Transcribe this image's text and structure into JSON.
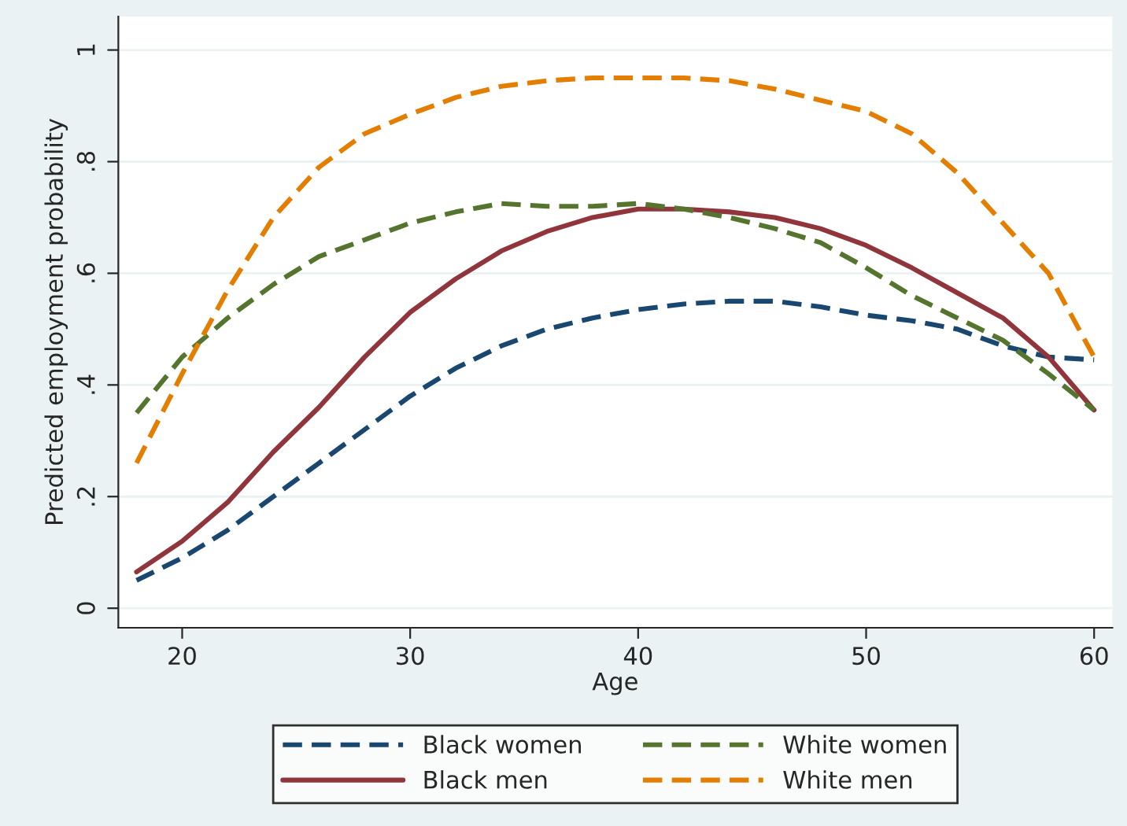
{
  "chart_data": {
    "type": "line",
    "xlabel": "Age",
    "ylabel": "Predicted employment probability",
    "x": [
      18,
      20,
      22,
      24,
      26,
      28,
      30,
      32,
      34,
      36,
      38,
      40,
      42,
      44,
      46,
      48,
      50,
      52,
      54,
      56,
      58,
      60
    ],
    "series": [
      {
        "name": "Black women",
        "color": "#1a476f",
        "line_style": "dashed",
        "values": [
          0.05,
          0.09,
          0.14,
          0.2,
          0.26,
          0.32,
          0.38,
          0.43,
          0.47,
          0.5,
          0.52,
          0.535,
          0.545,
          0.55,
          0.55,
          0.54,
          0.525,
          0.515,
          0.5,
          0.47,
          0.45,
          0.445
        ]
      },
      {
        "name": "Black men",
        "color": "#90353b",
        "line_style": "solid",
        "values": [
          0.065,
          0.12,
          0.19,
          0.28,
          0.36,
          0.45,
          0.53,
          0.59,
          0.64,
          0.675,
          0.7,
          0.715,
          0.715,
          0.71,
          0.7,
          0.68,
          0.65,
          0.61,
          0.565,
          0.52,
          0.45,
          0.355
        ]
      },
      {
        "name": "White women",
        "color": "#55752f",
        "line_style": "dashed",
        "values": [
          0.35,
          0.45,
          0.52,
          0.58,
          0.63,
          0.66,
          0.69,
          0.71,
          0.725,
          0.72,
          0.72,
          0.725,
          0.715,
          0.7,
          0.68,
          0.655,
          0.61,
          0.56,
          0.52,
          0.48,
          0.42,
          0.355
        ]
      },
      {
        "name": "White men",
        "color": "#e37e00",
        "line_style": "dashed",
        "values": [
          0.26,
          0.42,
          0.57,
          0.7,
          0.79,
          0.85,
          0.885,
          0.915,
          0.935,
          0.945,
          0.95,
          0.95,
          0.95,
          0.945,
          0.93,
          0.91,
          0.89,
          0.85,
          0.78,
          0.69,
          0.6,
          0.45
        ]
      }
    ],
    "xlim": [
      17.2,
      60.8
    ],
    "xticks": [
      20,
      30,
      40,
      50,
      60
    ],
    "ylim": [
      -0.035,
      1.06
    ],
    "yticks": [
      0,
      {
        "value": 0.2,
        "label": ".2"
      },
      {
        "value": 0.4,
        "label": ".4"
      },
      {
        "value": 0.6,
        "label": ".6"
      },
      {
        "value": 0.8,
        "label": ".8"
      },
      1
    ],
    "grid": "y",
    "legend": "bottom"
  }
}
